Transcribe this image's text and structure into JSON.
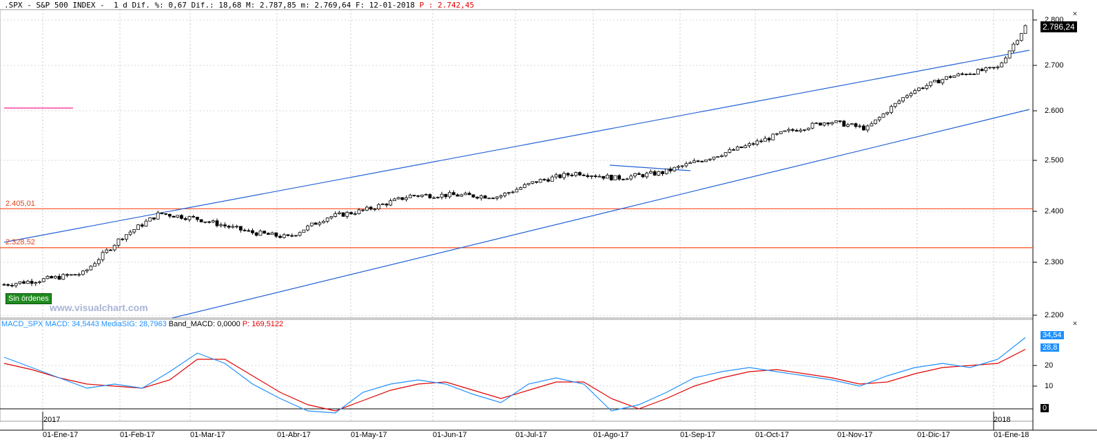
{
  "header": {
    "symbol": ".SPX - S&P 500 INDEX -",
    "stats": "  1 d Dif. %: 0,67 Dif.: 18,68 M: 2.787,85 m: 2.769,64 F: 12-01-2018",
    "pivot": " P : 2.742,45"
  },
  "last_price": "2.786,24",
  "badge": "Sin órdenes",
  "watermark": "www.visualchart.com",
  "levels": [
    {
      "label": "2.405,01",
      "value": 2405.01
    },
    {
      "label": "2.328,52",
      "value": 2328.52
    }
  ],
  "macd": {
    "name": "MACD_SPX",
    "macd_label": "MACD: 34,5443",
    "sig_label": "MediaSIG: 28,7963",
    "band_label": "Band_MACD: 0,0000",
    "p_label": "P: 169,5122",
    "macd_box": "34,54",
    "sig_box": "28,8",
    "zero_box": "0",
    "macd_color": "#1e90ff",
    "sig_color": "#e00000"
  },
  "y_labels": [
    "2.800",
    "2.700",
    "2.600",
    "2.500",
    "2.400",
    "2.300",
    "2.200"
  ],
  "macd_y_labels": [
    "20",
    "10"
  ],
  "x_labels": [
    "01-Ene-17",
    "01-Feb-17",
    "01-Mar-17",
    "01-Abr-17",
    "01-May-17",
    "01-Jun-17",
    "01-Jul-17",
    "01-Ago-17",
    "01-Sep-17",
    "01-Oct-17",
    "01-Nov-17",
    "01-Dic-17",
    "01-Ene-18"
  ],
  "years": [
    "2017",
    "2018"
  ],
  "colors": {
    "channel": "#1f5fd6",
    "level": "#ff4a1a",
    "accent": "#ff40a0"
  },
  "chart_data": {
    "type": "candlestick",
    "price_axis": {
      "ylim": [
        2200,
        2800
      ],
      "ticks": [
        2200,
        2300,
        2400,
        2500,
        2600,
        2700,
        2800
      ]
    },
    "macd_axis": {
      "ticks": [
        0,
        10,
        20
      ]
    },
    "close_series": [
      {
        "date": "2017-01-03",
        "close": 2258
      },
      {
        "date": "2017-01-17",
        "close": 2267
      },
      {
        "date": "2017-02-01",
        "close": 2279
      },
      {
        "date": "2017-02-15",
        "close": 2349
      },
      {
        "date": "2017-03-01",
        "close": 2396
      },
      {
        "date": "2017-03-15",
        "close": 2385
      },
      {
        "date": "2017-04-03",
        "close": 2359
      },
      {
        "date": "2017-04-17",
        "close": 2349
      },
      {
        "date": "2017-05-01",
        "close": 2388
      },
      {
        "date": "2017-05-15",
        "close": 2402
      },
      {
        "date": "2017-06-01",
        "close": 2431
      },
      {
        "date": "2017-06-15",
        "close": 2432
      },
      {
        "date": "2017-07-03",
        "close": 2429
      },
      {
        "date": "2017-07-17",
        "close": 2459
      },
      {
        "date": "2017-08-01",
        "close": 2476
      },
      {
        "date": "2017-08-15",
        "close": 2465
      },
      {
        "date": "2017-09-01",
        "close": 2476
      },
      {
        "date": "2017-09-15",
        "close": 2500
      },
      {
        "date": "2017-10-02",
        "close": 2529
      },
      {
        "date": "2017-10-16",
        "close": 2557
      },
      {
        "date": "2017-11-01",
        "close": 2579
      },
      {
        "date": "2017-11-15",
        "close": 2564
      },
      {
        "date": "2017-12-01",
        "close": 2642
      },
      {
        "date": "2017-12-15",
        "close": 2675
      },
      {
        "date": "2018-01-02",
        "close": 2695
      },
      {
        "date": "2018-01-12",
        "close": 2786
      }
    ],
    "macd_series": [
      25,
      20,
      15,
      10,
      12,
      10,
      18,
      27,
      22,
      12,
      5,
      -1,
      -2,
      8,
      12,
      14,
      12,
      7,
      3,
      12,
      15,
      12,
      -1,
      2,
      8,
      15,
      18,
      20,
      18,
      16,
      14,
      11,
      16,
      20,
      22,
      20,
      24,
      34.5
    ],
    "signal_series": [
      22,
      19,
      15,
      12,
      11,
      10,
      14,
      24,
      24,
      16,
      8,
      2,
      -1,
      4,
      9,
      12,
      13,
      9,
      5,
      9,
      13,
      13,
      5,
      0,
      5,
      11,
      15,
      18,
      19,
      17,
      15,
      12,
      13,
      17,
      20,
      21,
      22,
      28.8
    ]
  }
}
